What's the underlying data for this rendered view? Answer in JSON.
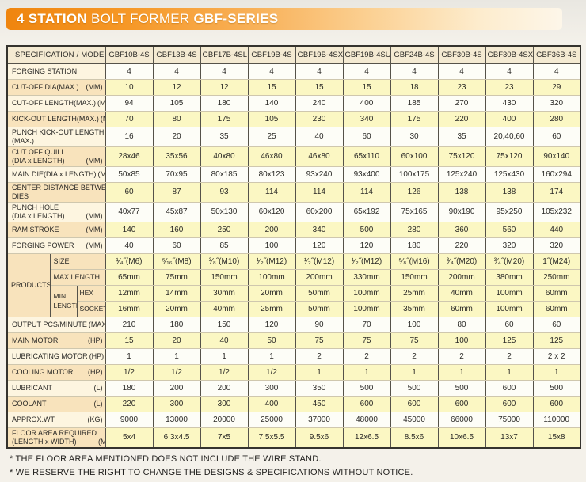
{
  "title": {
    "part1": "4 STATION",
    "part2": " BOLT FORMER ",
    "part3": "GBF-SERIES"
  },
  "table": {
    "spec_header": "SPECIFICATION  /  MODEL",
    "models": [
      "GBF10B-4S",
      "GBF13B-4S",
      "GBF17B-4SL",
      "GBF19B-4S",
      "GBF19B-4SXL",
      "GBF19B-4SUL",
      "GBF24B-4S",
      "GBF30B-4S",
      "GBF30B-4SXL",
      "GBF36B-4S"
    ],
    "rows_top": [
      {
        "label": "FORGING STATION",
        "unit": "",
        "shade": "white",
        "values": [
          "4",
          "4",
          "4",
          "4",
          "4",
          "4",
          "4",
          "4",
          "4",
          "4"
        ]
      },
      {
        "label": "CUT-OFF DIA(MAX.)",
        "unit": "(MM)",
        "shade": "yellow",
        "values": [
          "10",
          "12",
          "12",
          "15",
          "15",
          "15",
          "18",
          "23",
          "23",
          "29"
        ]
      },
      {
        "label": "CUT-OFF LENGTH(MAX.)",
        "unit": "(MM)",
        "shade": "white",
        "values": [
          "94",
          "105",
          "180",
          "140",
          "240",
          "400",
          "185",
          "270",
          "430",
          "320"
        ]
      },
      {
        "label": "KICK-OUT  LENGTH(MAX.)",
        "unit": "(MM)",
        "shade": "yellow",
        "values": [
          "70",
          "80",
          "175",
          "105",
          "230",
          "340",
          "175",
          "220",
          "400",
          "280"
        ]
      },
      {
        "label": "PUNCH KICK-OUT LENGTH",
        "label2": "(MAX.)",
        "unit": "(MM)",
        "shade": "white",
        "tall": true,
        "values": [
          "16",
          "20",
          "35",
          "25",
          "40",
          "60",
          "30",
          "35",
          "20,40,60",
          "60"
        ]
      },
      {
        "label": "CUT OFF QUILL",
        "label2": "(DIA x LENGTH)",
        "unit": "(MM)",
        "shade": "yellow",
        "tall": true,
        "values": [
          "28x46",
          "35x56",
          "40x80",
          "46x80",
          "46x80",
          "65x110",
          "60x100",
          "75x120",
          "75x120",
          "90x140"
        ]
      },
      {
        "label": "MAIN DIE(DIA x LENGTH)",
        "unit": "(MM)",
        "shade": "white",
        "values": [
          "50x85",
          "70x95",
          "80x185",
          "80x123",
          "93x240",
          "93x400",
          "100x175",
          "125x240",
          "125x430",
          "160x294"
        ]
      },
      {
        "label": "CENTER DISTANCE BETWEEN",
        "label2": "DIES",
        "unit": "(MM)",
        "shade": "yellow",
        "tall": true,
        "values": [
          "60",
          "87",
          "93",
          "114",
          "114",
          "114",
          "126",
          "138",
          "138",
          "174"
        ]
      },
      {
        "label": "PUNCH HOLE",
        "label2": "(DIA x LENGTH)",
        "unit": "(MM)",
        "shade": "white",
        "tall": true,
        "values": [
          "40x77",
          "45x87",
          "50x130",
          "60x120",
          "60x200",
          "65x192",
          "75x165",
          "90x190",
          "95x250",
          "105x232"
        ]
      },
      {
        "label": "RAM STROKE",
        "unit": "(MM)",
        "shade": "yellow",
        "values": [
          "140",
          "160",
          "250",
          "200",
          "340",
          "500",
          "280",
          "360",
          "560",
          "440"
        ]
      },
      {
        "label": "FORGING POWER",
        "unit": "(MM)",
        "shade": "white",
        "values": [
          "40",
          "60",
          "85",
          "100",
          "120",
          "120",
          "180",
          "220",
          "320",
          "320"
        ]
      }
    ],
    "products": {
      "group_label": "PRODUCTS",
      "size_label": "SIZE",
      "max_label": "MAX LENGTH",
      "min_label": "MIN",
      "length_label": "LENGTH",
      "hex_label": "HEX",
      "socket_label": "SOCKET",
      "size_values": [
        "¹⁄₄˝(M6)",
        "⁵⁄₁₆˝(M8)",
        "³⁄₈˝(M10)",
        "¹⁄₂˝(M12)",
        "¹⁄₂˝(M12)",
        "¹⁄₂˝(M12)",
        "⁵⁄₈˝(M16)",
        "³⁄₄˝(M20)",
        "³⁄₄˝(M20)",
        "1˝(M24)"
      ],
      "max_values": [
        "65mm",
        "75mm",
        "150mm",
        "100mm",
        "200mm",
        "330mm",
        "150mm",
        "200mm",
        "380mm",
        "250mm"
      ],
      "hex_values": [
        "12mm",
        "14mm",
        "30mm",
        "20mm",
        "50mm",
        "100mm",
        "25mm",
        "40mm",
        "100mm",
        "60mm"
      ],
      "socket_values": [
        "16mm",
        "20mm",
        "40mm",
        "25mm",
        "50mm",
        "100mm",
        "35mm",
        "60mm",
        "100mm",
        "60mm"
      ]
    },
    "rows_bottom": [
      {
        "label": "OUTPUT PCS/MINUTE",
        "unit": "(MAX)",
        "shade": "white",
        "values": [
          "210",
          "180",
          "150",
          "120",
          "90",
          "70",
          "100",
          "80",
          "60",
          "60"
        ]
      },
      {
        "label": "MAIN MOTOR",
        "unit": "(HP)",
        "shade": "yellow",
        "values": [
          "15",
          "20",
          "40",
          "50",
          "75",
          "75",
          "75",
          "100",
          "125",
          "125"
        ]
      },
      {
        "label": "LUBRICATING MOTOR",
        "unit": "(HP)",
        "shade": "white",
        "values": [
          "1",
          "1",
          "1",
          "1",
          "2",
          "2",
          "2",
          "2",
          "2",
          "2 x 2"
        ]
      },
      {
        "label": "COOLING MOTOR",
        "unit": "(HP)",
        "shade": "yellow",
        "values": [
          "1/2",
          "1/2",
          "1/2",
          "1/2",
          "1",
          "1",
          "1",
          "1",
          "1",
          "1"
        ]
      },
      {
        "label": "LUBRICANT",
        "unit": "(L)",
        "shade": "white",
        "values": [
          "180",
          "200",
          "200",
          "300",
          "350",
          "500",
          "500",
          "500",
          "600",
          "500"
        ]
      },
      {
        "label": "COOLANT",
        "unit": "(L)",
        "shade": "yellow",
        "values": [
          "220",
          "300",
          "300",
          "400",
          "450",
          "600",
          "600",
          "600",
          "600",
          "600"
        ]
      },
      {
        "label": "APPROX.WT",
        "unit": "(KG)",
        "shade": "white",
        "values": [
          "9000",
          "13000",
          "20000",
          "25000",
          "37000",
          "48000",
          "45000",
          "66000",
          "75000",
          "110000"
        ]
      },
      {
        "label": "FLOOR AREA REQUIRED",
        "label2": "(LENGTH x WIDTH)",
        "unit": "(M)",
        "shade": "yellow",
        "tall": true,
        "values": [
          "5x4",
          "6.3x4.5",
          "7x5",
          "7.5x5.5",
          "9.5x6",
          "12x6.5",
          "8.5x6",
          "10x6.5",
          "13x7",
          "15x8"
        ]
      }
    ]
  },
  "footnotes": [
    "* THE FLOOR AREA MENTIONED DOES NOT INCLUDE THE WIRE STAND.",
    "* WE RESERVE THE RIGHT TO CHANGE THE DESIGNS & SPECIFICATIONS WITHOUT NOTICE."
  ]
}
